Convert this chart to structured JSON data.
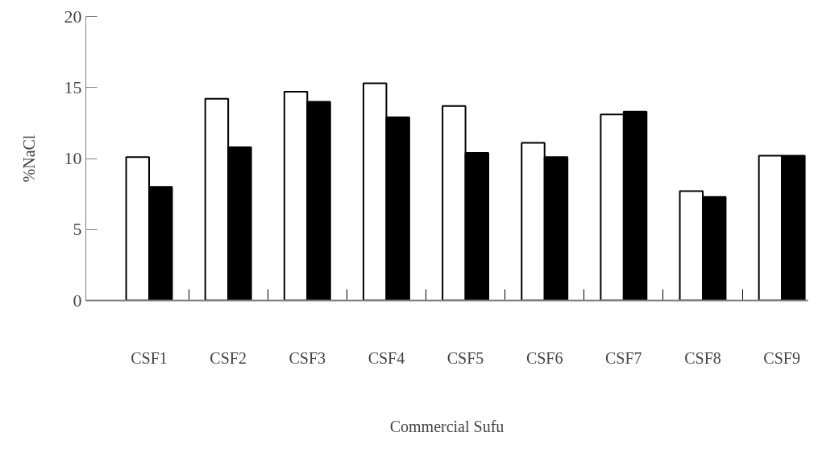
{
  "chart_data": {
    "type": "bar",
    "xlabel": "Commercial Sufu",
    "ylabel": "%NaCl",
    "categories": [
      "CSF1",
      "CSF2",
      "CSF3",
      "CSF4",
      "CSF5",
      "CSF6",
      "CSF7",
      "CSF8",
      "CSF9"
    ],
    "series": [
      {
        "color": "#ffffff",
        "values": [
          10.1,
          14.2,
          14.7,
          15.3,
          13.7,
          11.1,
          13.1,
          7.7,
          10.2
        ]
      },
      {
        "color": "#000000",
        "values": [
          8.0,
          10.8,
          14.0,
          12.9,
          10.4,
          10.1,
          13.3,
          7.3,
          10.2
        ]
      }
    ],
    "ylim": [
      0,
      20
    ],
    "yticks": [
      0,
      5,
      10,
      15,
      20
    ],
    "grid": false
  }
}
